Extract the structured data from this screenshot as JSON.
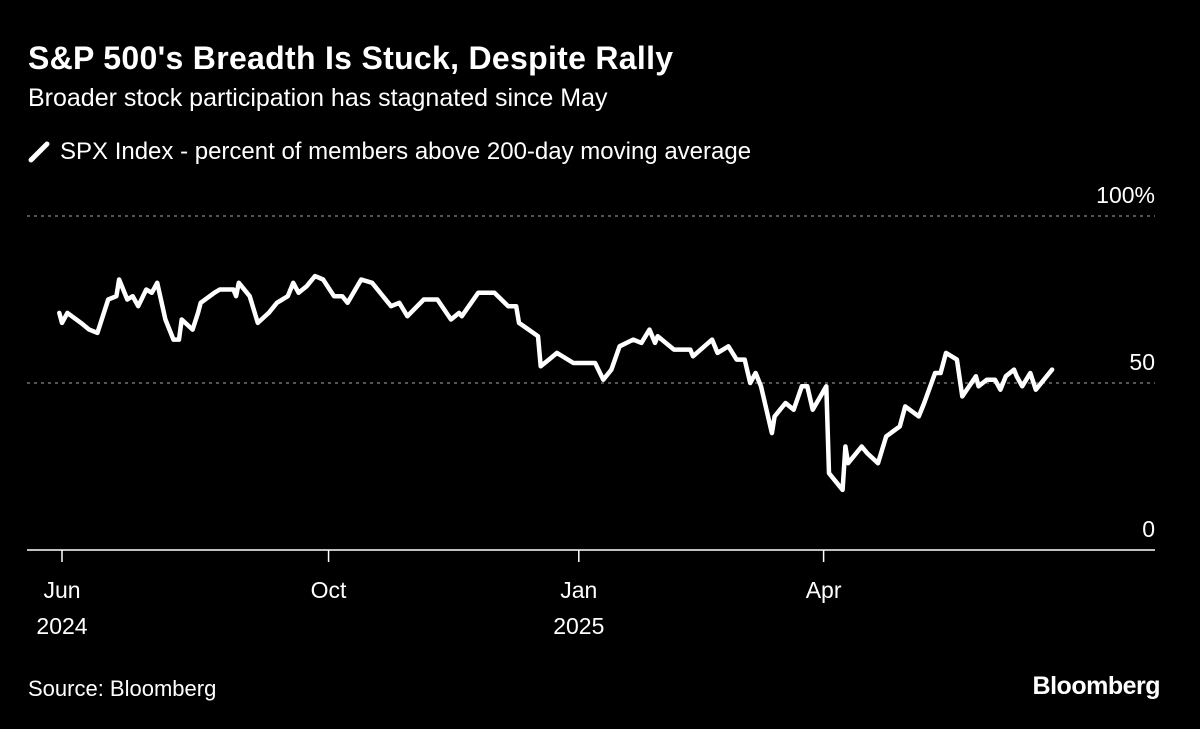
{
  "title": "S&P 500's Breadth Is Stuck, Despite Rally",
  "subtitle": "Broader stock participation has stagnated since May",
  "source": "Source: Bloomberg",
  "brand": "Bloomberg",
  "colors": {
    "background": "#000000",
    "line": "#ffffff",
    "grid": "#888888"
  },
  "chart_data": {
    "type": "line",
    "title": "S&P 500's Breadth Is Stuck, Despite Rally",
    "xlabel": "",
    "ylabel": "",
    "x_units": "days since early June 2024 (approx.)",
    "xlim": [
      -13,
      402
    ],
    "ylim": [
      0,
      100
    ],
    "y_ticks": [
      {
        "value": 0,
        "label": "0"
      },
      {
        "value": 50,
        "label": "50"
      },
      {
        "value": 100,
        "label": "100%"
      }
    ],
    "gridlines": [
      50,
      100
    ],
    "x_ticks": [
      {
        "value": 0,
        "label": "Jun",
        "sublabel": "2024"
      },
      {
        "value": 98,
        "label": "Oct",
        "sublabel": ""
      },
      {
        "value": 190,
        "label": "Jan",
        "sublabel": "2025"
      },
      {
        "value": 280,
        "label": "Apr",
        "sublabel": ""
      }
    ],
    "legend": "top-left",
    "series": [
      {
        "name": "SPX Index - percent of members above 200-day moving average",
        "x": [
          -1,
          0,
          2,
          7,
          10,
          13,
          17,
          20,
          21,
          24,
          26,
          28,
          31,
          33,
          35,
          38,
          41,
          43,
          44,
          48,
          50,
          51,
          56,
          58,
          63,
          64,
          65,
          69,
          72,
          76,
          79,
          83,
          85,
          87,
          90,
          93,
          96,
          100,
          103,
          105,
          110,
          114,
          121,
          124,
          127,
          133,
          138,
          143,
          146,
          147,
          153,
          159,
          164,
          167,
          168,
          175,
          176,
          179,
          182,
          188,
          196,
          199,
          202,
          205,
          210,
          213,
          216,
          218,
          219,
          225,
          231,
          232,
          239,
          241,
          245,
          248,
          251,
          253,
          255,
          257,
          261,
          262,
          266,
          269,
          272,
          274,
          276,
          281,
          282,
          287,
          288,
          289,
          294,
          296,
          300,
          303,
          308,
          310,
          315,
          317,
          321,
          323,
          325,
          329,
          331,
          336,
          337,
          340,
          343,
          345,
          347,
          350,
          351,
          353,
          356,
          358,
          364
        ],
        "values": [
          71,
          68,
          71,
          68,
          66,
          65,
          75,
          76,
          81,
          75,
          76,
          73,
          78,
          77,
          80,
          69,
          63,
          63,
          69,
          66,
          71,
          74,
          77,
          78,
          78,
          76,
          80,
          76,
          68,
          71,
          74,
          76,
          80,
          77,
          79,
          82,
          81,
          76,
          76,
          74,
          81,
          80,
          73,
          74,
          70,
          75,
          75,
          69,
          71,
          70,
          77,
          77,
          73,
          73,
          68,
          64,
          55,
          57,
          59,
          56,
          56,
          51,
          54,
          61,
          63,
          62,
          66,
          62,
          64,
          60,
          60,
          58,
          63,
          59,
          61,
          57,
          57,
          50,
          53,
          49,
          35,
          40,
          44,
          42,
          49,
          49,
          42,
          49,
          23,
          18,
          31,
          26,
          31,
          29,
          26,
          34,
          37,
          43,
          40,
          44,
          53,
          53,
          59,
          57,
          46,
          52,
          49,
          51,
          51,
          48,
          52,
          54,
          52,
          49,
          53,
          48,
          54
        ]
      }
    ]
  }
}
